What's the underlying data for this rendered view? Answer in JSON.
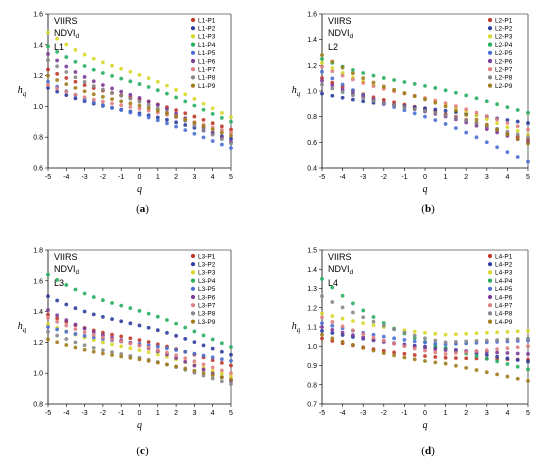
{
  "chart_data": [
    {
      "panel_label": "(a)",
      "annotation": {
        "line1": "VIIRS",
        "line2": "NDVI",
        "sub": "d",
        "line3": "L1"
      },
      "type": "scatter",
      "xlabel": "q",
      "ylabel": "h",
      "ylabel_sub": "q",
      "xlim": [
        -5,
        5
      ],
      "xticks": [
        -5,
        -4,
        -3,
        -2,
        -1,
        0,
        1,
        2,
        3,
        4,
        5
      ],
      "ylim": [
        0.6,
        1.6
      ],
      "yticks": [
        0.6,
        0.8,
        1.0,
        1.2,
        1.4,
        1.6
      ],
      "ytick_labels": [
        "0.6",
        "0.8",
        "1.0",
        "1.2",
        "1.4",
        "1.6"
      ],
      "x": [
        -5,
        -4.5,
        -4,
        -3.5,
        -3,
        -2.5,
        -2,
        -1.5,
        -1,
        -0.5,
        0,
        0.5,
        1,
        1.5,
        2,
        2.5,
        3,
        3.5,
        4,
        4.5,
        5
      ],
      "series": [
        {
          "name": "L1-P1",
          "color": "#c0392b",
          "start": 1.24,
          "end": 0.85
        },
        {
          "name": "L1-P2",
          "color": "#2c3e9e",
          "start": 1.12,
          "end": 0.79
        },
        {
          "name": "L1-P3",
          "color": "#d8d82a",
          "start": 1.48,
          "end": 0.93
        },
        {
          "name": "L1-P4",
          "color": "#27ae60",
          "start": 1.39,
          "end": 0.9
        },
        {
          "name": "L1-P5",
          "color": "#4a6fd4",
          "start": 1.16,
          "end": 0.73
        },
        {
          "name": "L1-P6",
          "color": "#7d3c98",
          "start": 1.34,
          "end": 0.77
        },
        {
          "name": "L1-P7",
          "color": "#e08080",
          "start": 1.14,
          "end": 0.83
        },
        {
          "name": "L1-P8",
          "color": "#888888",
          "start": 1.3,
          "end": 0.76
        },
        {
          "name": "L1-P9",
          "color": "#a07c1c",
          "start": 1.2,
          "end": 0.81
        }
      ]
    },
    {
      "panel_label": "(b)",
      "annotation": {
        "line1": "VIIRS",
        "line2": "NDVI",
        "sub": "d",
        "line3": "L2"
      },
      "type": "scatter",
      "xlabel": "q",
      "ylabel": "h",
      "ylabel_sub": "q",
      "xlim": [
        -5,
        5
      ],
      "xticks": [
        -5,
        -4,
        -3,
        -2,
        -1,
        0,
        1,
        2,
        3,
        4,
        5
      ],
      "ylim": [
        0.4,
        1.6
      ],
      "yticks": [
        0.4,
        0.6,
        0.8,
        1.0,
        1.2,
        1.4,
        1.6
      ],
      "ytick_labels": [
        "0.4",
        "0.6",
        "0.8",
        "1.0",
        "1.2",
        "1.4",
        "1.6"
      ],
      "x": [
        -5,
        -4.5,
        -4,
        -3.5,
        -3,
        -2.5,
        -2,
        -1.5,
        -1,
        -0.5,
        0,
        0.5,
        1,
        1.5,
        2,
        2.5,
        3,
        3.5,
        4,
        4.5,
        5
      ],
      "series": [
        {
          "name": "L2-P1",
          "color": "#c0392b",
          "start": 1.1,
          "end": 0.62
        },
        {
          "name": "L2-P2",
          "color": "#2c3e9e",
          "start": 0.98,
          "end": 0.75
        },
        {
          "name": "L2-P3",
          "color": "#d8d82a",
          "start": 1.22,
          "end": 0.66
        },
        {
          "name": "L2-P4",
          "color": "#27ae60",
          "start": 1.25,
          "end": 0.83
        },
        {
          "name": "L2-P5",
          "color": "#4a6fd4",
          "start": 1.15,
          "end": 0.45
        },
        {
          "name": "L2-P6",
          "color": "#7d3c98",
          "start": 1.08,
          "end": 0.6
        },
        {
          "name": "L2-P7",
          "color": "#e08080",
          "start": 1.19,
          "end": 0.7
        },
        {
          "name": "L2-P8",
          "color": "#888888",
          "start": 1.05,
          "end": 0.64
        },
        {
          "name": "L2-P9",
          "color": "#a07c1c",
          "start": 1.28,
          "end": 0.59
        }
      ]
    },
    {
      "panel_label": "(c)",
      "annotation": {
        "line1": "VIIRS",
        "line2": "NDVI",
        "sub": "d",
        "line3": "L3"
      },
      "type": "scatter",
      "xlabel": "q",
      "ylabel": "h",
      "ylabel_sub": "q",
      "xlim": [
        -5,
        5
      ],
      "xticks": [
        -5,
        -4,
        -3,
        -2,
        -1,
        0,
        1,
        2,
        3,
        4,
        5
      ],
      "ylim": [
        0.8,
        1.8
      ],
      "yticks": [
        0.8,
        1.0,
        1.2,
        1.4,
        1.6,
        1.8
      ],
      "ytick_labels": [
        "0.8",
        "1.0",
        "1.2",
        "1.4",
        "1.6",
        "1.8"
      ],
      "x": [
        -5,
        -4.5,
        -4,
        -3.5,
        -3,
        -2.5,
        -2,
        -1.5,
        -1,
        -0.5,
        0,
        0.5,
        1,
        1.5,
        2,
        2.5,
        3,
        3.5,
        4,
        4.5,
        5
      ],
      "series": [
        {
          "name": "L3-P1",
          "color": "#c0392b",
          "start": 1.38,
          "end": 1.05
        },
        {
          "name": "L3-P2",
          "color": "#2c3e9e",
          "start": 1.5,
          "end": 1.12
        },
        {
          "name": "L3-P3",
          "color": "#d8d82a",
          "start": 1.32,
          "end": 0.98
        },
        {
          "name": "L3-P4",
          "color": "#27ae60",
          "start": 1.64,
          "end": 1.17
        },
        {
          "name": "L3-P5",
          "color": "#4a6fd4",
          "start": 1.3,
          "end": 1.08
        },
        {
          "name": "L3-P6",
          "color": "#7d3c98",
          "start": 1.41,
          "end": 0.95
        },
        {
          "name": "L3-P7",
          "color": "#e08080",
          "start": 1.36,
          "end": 1.0
        },
        {
          "name": "L3-P8",
          "color": "#888888",
          "start": 1.27,
          "end": 0.93
        },
        {
          "name": "L3-P9",
          "color": "#a07c1c",
          "start": 1.22,
          "end": 0.96
        }
      ]
    },
    {
      "panel_label": "(d)",
      "annotation": {
        "line1": "VIIRS",
        "line2": "NDVI",
        "sub": "d",
        "line3": "L4"
      },
      "type": "scatter",
      "xlabel": "q",
      "ylabel": "h",
      "ylabel_sub": "q",
      "xlim": [
        -5,
        5
      ],
      "xticks": [
        -5,
        -4,
        -3,
        -2,
        -1,
        0,
        1,
        2,
        3,
        4,
        5
      ],
      "ylim": [
        0.7,
        1.5
      ],
      "yticks": [
        0.7,
        0.8,
        0.9,
        1.0,
        1.1,
        1.2,
        1.3,
        1.4,
        1.5
      ],
      "ytick_labels": [
        "0.7",
        "0.8",
        "0.9",
        "1.0",
        "1.1",
        "1.2",
        "1.3",
        "1.4",
        "1.5"
      ],
      "x": [
        -5,
        -4.5,
        -4,
        -3.5,
        -3,
        -2.5,
        -2,
        -1.5,
        -1,
        -0.5,
        0,
        0.5,
        1,
        1.5,
        2,
        2.5,
        3,
        3.5,
        4,
        4.5,
        5
      ],
      "series": [
        {
          "name": "L4-P1",
          "color": "#c0392b",
          "start": 1.04,
          "end": 0.93,
          "turn": 0.94
        },
        {
          "name": "L4-P2",
          "color": "#2c3e9e",
          "start": 1.08,
          "end": 0.92,
          "turn": 0.99
        },
        {
          "name": "L4-P3",
          "color": "#d8d82a",
          "start": 1.17,
          "end": 1.08,
          "turn": 1.06
        },
        {
          "name": "L4-P4",
          "color": "#27ae60",
          "start": 1.35,
          "end": 0.88,
          "turn": 0.99
        },
        {
          "name": "L4-P5",
          "color": "#4a6fd4",
          "start": 1.12,
          "end": 1.03,
          "turn": 1.01
        },
        {
          "name": "L4-P6",
          "color": "#7d3c98",
          "start": 1.1,
          "end": 0.96,
          "turn": 0.98
        },
        {
          "name": "L4-P7",
          "color": "#e08080",
          "start": 1.15,
          "end": 1.0,
          "turn": 0.96
        },
        {
          "name": "L4-P8",
          "color": "#888888",
          "start": 1.26,
          "end": 1.04,
          "turn": 1.02
        },
        {
          "name": "L4-P9",
          "color": "#a07c1c",
          "start": 1.06,
          "end": 0.82,
          "turn": 0.91
        }
      ]
    }
  ]
}
